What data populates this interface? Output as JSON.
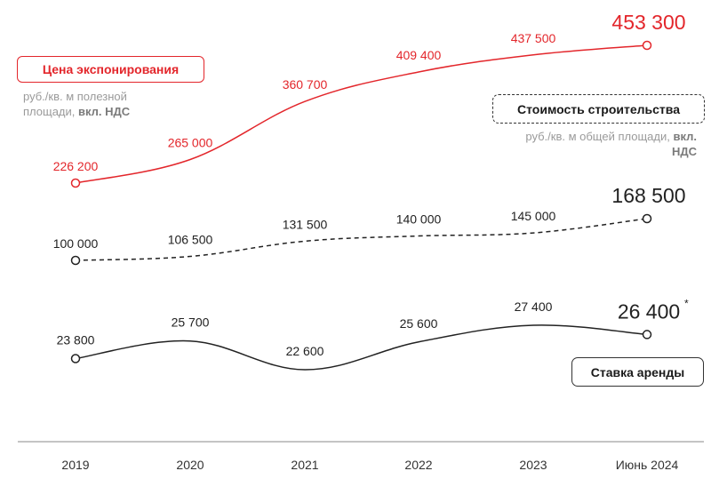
{
  "chart_data": {
    "type": "line",
    "categories": [
      "2019",
      "2020",
      "2021",
      "2022",
      "2023",
      "Июнь 2024"
    ],
    "series": [
      {
        "name": "Цена экспонирования",
        "unit_prefix": "руб./кв. м полезной площади, ",
        "unit_bold": "вкл. НДС",
        "color": "#e3262b",
        "style": "solid",
        "values": [
          226200,
          265000,
          360700,
          409400,
          437500,
          453300
        ],
        "labels": [
          "226 200",
          "265 000",
          "360 700",
          "409 400",
          "437 500",
          "453 300"
        ]
      },
      {
        "name": "Стоимость строительства",
        "unit_prefix": "руб./кв. м общей площади, ",
        "unit_bold": "вкл. НДС",
        "color": "#222222",
        "style": "dashed",
        "values": [
          100000,
          106500,
          131500,
          140000,
          145000,
          168500
        ],
        "labels": [
          "100 000",
          "106 500",
          "131 500",
          "140 000",
          "145 000",
          "168 500"
        ]
      },
      {
        "name": "Ставка аренды",
        "color": "#222222",
        "style": "solid",
        "values": [
          23800,
          25700,
          22600,
          25600,
          27400,
          26400
        ],
        "labels": [
          "23 800",
          "25 700",
          "22 600",
          "25 600",
          "27 400",
          "26 400"
        ],
        "last_label_mark": "*"
      }
    ],
    "legend": {
      "price": "Цена экспонирования",
      "price_unit": "руб./кв. м полезной площади,",
      "price_unit_bold": "вкл. НДС",
      "cost": "Стоимость строительства",
      "cost_unit": "руб./кв. м общей площади,",
      "cost_unit_bold": "вкл. НДС",
      "rent": "Ставка аренды"
    },
    "title": "",
    "xlabel": "",
    "ylabel": "",
    "grid": false
  }
}
